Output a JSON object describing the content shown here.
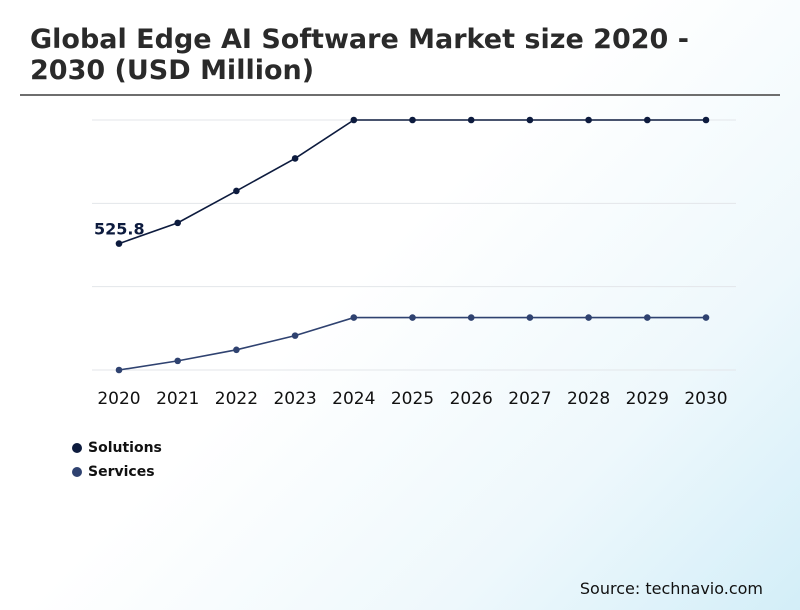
{
  "title": "Global Edge AI Software Market size 2020 - 2030 (USD Million)",
  "source": "Source: technavio.com",
  "chart_data": {
    "type": "line",
    "title": "Global Edge AI Software Market size 2020 - 2030 (USD Million)",
    "x": [
      "2020",
      "2021",
      "2022",
      "2023",
      "2024",
      "2025",
      "2026",
      "2027",
      "2028",
      "2029",
      "2030"
    ],
    "ylim": [
      0,
      1040
    ],
    "grid": true,
    "y_tick_labels": false,
    "legend": "bottom-left",
    "annotation": {
      "text": "525.8",
      "series": 0,
      "index": 0
    },
    "series": [
      {
        "name": "Solutions",
        "color": "#0d1b3e",
        "values": [
          525.8,
          612,
          745,
          880,
          1040,
          1040,
          1040,
          1040,
          1040,
          1040,
          1040
        ]
      },
      {
        "name": "Services",
        "color": "#2f4270",
        "values": [
          0,
          38,
          84,
          143,
          218,
          218,
          218,
          218,
          218,
          218,
          218
        ]
      }
    ]
  }
}
